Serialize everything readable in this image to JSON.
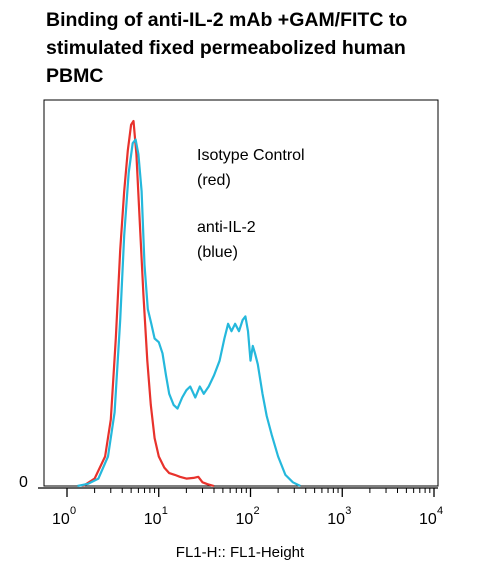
{
  "title_lines": [
    "Binding of anti-IL-2 mAb +GAM/FITC to",
    "stimulated fixed permeabolized human",
    "PBMC"
  ],
  "chart_data": {
    "type": "line",
    "xlabel": "FL1-H:: FL1-Height",
    "ylabel": "",
    "x_scale": "log",
    "xlim": [
      1,
      10000
    ],
    "x_ticks": [
      {
        "base": "10",
        "exp": "0",
        "value": 1
      },
      {
        "base": "10",
        "exp": "1",
        "value": 10
      },
      {
        "base": "10",
        "exp": "2",
        "value": 100
      },
      {
        "base": "10",
        "exp": "3",
        "value": 1000
      },
      {
        "base": "10",
        "exp": "4",
        "value": 10000
      }
    ],
    "y_tick_label": "0",
    "ylim": [
      0,
      100
    ],
    "grid": false,
    "annotations": [
      {
        "lines": [
          "Isotype Control",
          "(red)"
        ]
      },
      {
        "lines": [
          "anti-IL-2",
          "(blue)"
        ]
      }
    ],
    "series": [
      {
        "color": "#e8322c",
        "points": [
          [
            1.5,
            0
          ],
          [
            2.0,
            2
          ],
          [
            2.6,
            8
          ],
          [
            3.0,
            18
          ],
          [
            3.4,
            40
          ],
          [
            3.8,
            64
          ],
          [
            4.2,
            80
          ],
          [
            4.6,
            91
          ],
          [
            5.0,
            98
          ],
          [
            5.3,
            99
          ],
          [
            5.7,
            90
          ],
          [
            6.2,
            72
          ],
          [
            6.8,
            52
          ],
          [
            7.5,
            34
          ],
          [
            8.2,
            22
          ],
          [
            9.0,
            13
          ],
          [
            10.0,
            8
          ],
          [
            11.5,
            5
          ],
          [
            13.0,
            3.5
          ],
          [
            15.0,
            3
          ],
          [
            17.0,
            2.5
          ],
          [
            20.0,
            2
          ],
          [
            24.0,
            2.2
          ],
          [
            27.0,
            2.5
          ],
          [
            30.0,
            1
          ],
          [
            34.0,
            0.5
          ],
          [
            40.0,
            0
          ]
        ]
      },
      {
        "color": "#25b8dc",
        "points": [
          [
            1.3,
            0
          ],
          [
            1.7,
            0.6
          ],
          [
            2.2,
            2
          ],
          [
            2.8,
            8
          ],
          [
            3.3,
            20
          ],
          [
            3.8,
            45
          ],
          [
            4.2,
            68
          ],
          [
            4.7,
            85
          ],
          [
            5.2,
            93
          ],
          [
            5.6,
            94
          ],
          [
            6.0,
            90
          ],
          [
            6.5,
            80
          ],
          [
            7.0,
            60
          ],
          [
            7.6,
            48
          ],
          [
            8.3,
            44
          ],
          [
            9.0,
            40
          ],
          [
            10.0,
            39
          ],
          [
            11.0,
            36
          ],
          [
            12.0,
            30
          ],
          [
            13.0,
            25
          ],
          [
            14.5,
            22
          ],
          [
            16.0,
            21
          ],
          [
            18.0,
            24
          ],
          [
            20.0,
            26
          ],
          [
            22.0,
            27
          ],
          [
            25.0,
            24
          ],
          [
            28.0,
            27
          ],
          [
            31.0,
            25
          ],
          [
            35.0,
            27
          ],
          [
            40.0,
            30
          ],
          [
            46.0,
            34
          ],
          [
            52.0,
            40
          ],
          [
            57.0,
            44
          ],
          [
            62.0,
            42
          ],
          [
            68.0,
            44
          ],
          [
            75.0,
            42
          ],
          [
            82.0,
            45
          ],
          [
            88.0,
            46
          ],
          [
            94.0,
            42
          ],
          [
            100.0,
            34
          ],
          [
            106.0,
            38
          ],
          [
            112.0,
            36
          ],
          [
            120.0,
            33
          ],
          [
            135.0,
            25
          ],
          [
            150.0,
            19
          ],
          [
            170.0,
            14
          ],
          [
            200.0,
            8
          ],
          [
            240.0,
            3
          ],
          [
            290.0,
            1
          ],
          [
            350.0,
            0
          ]
        ]
      }
    ]
  }
}
